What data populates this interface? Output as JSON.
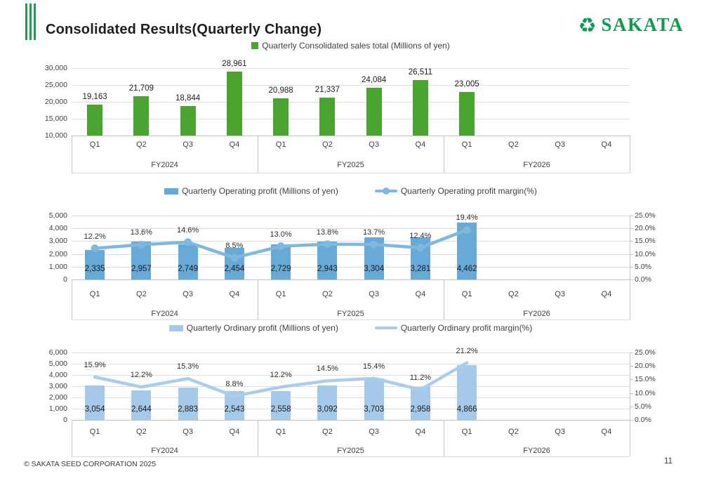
{
  "slide": {
    "title": "Consolidated Results(Quarterly Change)",
    "logo": {
      "brand": "SAKATA",
      "emblem_icon": "recycle-triangle-icon",
      "emblem_glyph": "♻"
    },
    "footer": {
      "copyright": "© SAKATA SEED CORPORATION 2025",
      "page": "11"
    }
  },
  "colors": {
    "accent_green": "#1e9e50",
    "logo_green": "#0d9b4d",
    "sales_bar": "#4ba42f",
    "operating_bar": "#67a9d7",
    "operating_line": "#7fb8df",
    "ordinary_bar": "#a5c9e8",
    "ordinary_line": "#a9cdea"
  },
  "chart_data": [
    {
      "type": "bar",
      "name": "quarterly-consolidated-sales",
      "legend": [
        {
          "label": "Quarterly Consolidated sales total (Millions of yen)",
          "marker": "square",
          "color_key": "sales_bar"
        }
      ],
      "groups": [
        "FY2024",
        "FY2025",
        "FY2026"
      ],
      "categories": [
        "Q1",
        "Q2",
        "Q3",
        "Q4",
        "Q1",
        "Q2",
        "Q3",
        "Q4",
        "Q1",
        "Q2",
        "Q3",
        "Q4"
      ],
      "series": [
        {
          "name": "Quarterly Consolidated sales total (Millions of yen)",
          "type": "bar",
          "color_key": "sales_bar",
          "values": [
            19163,
            21709,
            18844,
            28961,
            20988,
            21337,
            24084,
            26511,
            23005,
            null,
            null,
            null
          ]
        }
      ],
      "ylim": [
        10000,
        30000
      ],
      "ytick_step": 5000,
      "grid": true,
      "legend_position": "top"
    },
    {
      "type": "bar-line",
      "name": "quarterly-operating-profit",
      "legend": [
        {
          "label": "Quarterly Operating profit (Millions of yen)",
          "marker": "bar",
          "color_key": "operating_bar"
        },
        {
          "label": "Quarterly Operating profit margin(%)",
          "marker": "line-dot",
          "color_key": "operating_line"
        }
      ],
      "groups": [
        "FY2024",
        "FY2025",
        "FY2026"
      ],
      "categories": [
        "Q1",
        "Q2",
        "Q3",
        "Q4",
        "Q1",
        "Q2",
        "Q3",
        "Q4",
        "Q1",
        "Q2",
        "Q3",
        "Q4"
      ],
      "series": [
        {
          "name": "Quarterly Operating profit (Millions of yen)",
          "type": "bar",
          "color_key": "operating_bar",
          "values": [
            2335,
            2957,
            2749,
            2454,
            2729,
            2943,
            3304,
            3281,
            4462,
            null,
            null,
            null
          ]
        },
        {
          "name": "Quarterly Operating profit margin(%)",
          "type": "line",
          "color_key": "operating_line",
          "markers": true,
          "values": [
            12.2,
            13.6,
            14.6,
            8.5,
            13.0,
            13.8,
            13.7,
            12.4,
            19.4,
            null,
            null,
            null
          ]
        }
      ],
      "ylim": [
        0,
        5000
      ],
      "ytick_step": 1000,
      "y2lim": [
        0,
        25
      ],
      "y2tick_step": 5,
      "grid": true,
      "legend_position": "top"
    },
    {
      "type": "bar-line",
      "name": "quarterly-ordinary-profit",
      "legend": [
        {
          "label": "Quarterly Ordinary profit (Millions of yen)",
          "marker": "bar",
          "color_key": "ordinary_bar"
        },
        {
          "label": "Quarterly Ordinary profit margin(%)",
          "marker": "line",
          "color_key": "ordinary_line"
        }
      ],
      "groups": [
        "FY2024",
        "FY2025",
        "FY2026"
      ],
      "categories": [
        "Q1",
        "Q2",
        "Q3",
        "Q4",
        "Q1",
        "Q2",
        "Q3",
        "Q4",
        "Q1",
        "Q2",
        "Q3",
        "Q4"
      ],
      "series": [
        {
          "name": "Quarterly Ordinary profit (Millions of yen)",
          "type": "bar",
          "color_key": "ordinary_bar",
          "values": [
            3054,
            2644,
            2883,
            2543,
            2558,
            3092,
            3703,
            2958,
            4866,
            null,
            null,
            null
          ]
        },
        {
          "name": "Quarterly Ordinary profit margin(%)",
          "type": "line",
          "color_key": "ordinary_line",
          "markers": false,
          "values": [
            15.9,
            12.2,
            15.3,
            8.8,
            12.2,
            14.5,
            15.4,
            11.2,
            21.2,
            null,
            null,
            null
          ]
        }
      ],
      "ylim": [
        0,
        6000
      ],
      "ytick_step": 1000,
      "y2lim": [
        0,
        25
      ],
      "y2tick_step": 5,
      "grid": true,
      "legend_position": "top"
    }
  ]
}
